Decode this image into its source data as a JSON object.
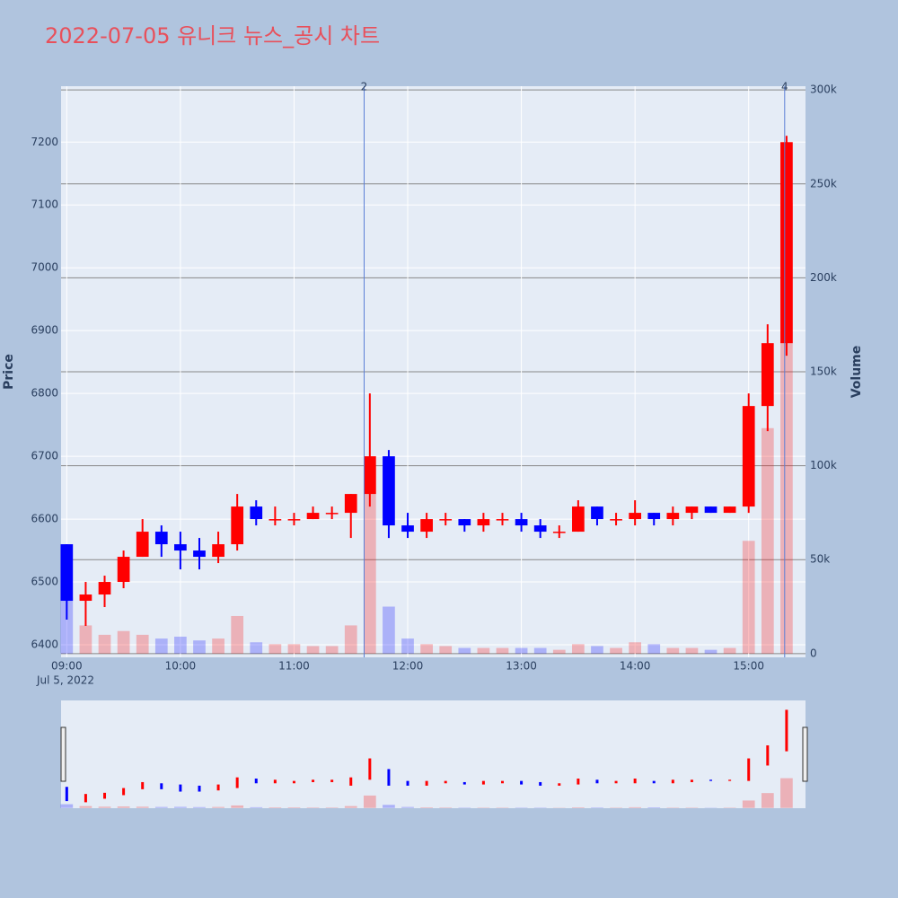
{
  "chart_data": {
    "type": "candlestick",
    "title": "2022-07-05 유니크 뉴스_공시 차트",
    "y_label": "Price",
    "y2_label": "Volume",
    "date_label": "Jul 5, 2022",
    "increasing_color": "#ff0000",
    "decreasing_color": "#0000ff",
    "x": [
      "09:00",
      "09:10",
      "09:20",
      "09:30",
      "09:40",
      "09:50",
      "10:00",
      "10:10",
      "10:20",
      "10:30",
      "10:40",
      "10:50",
      "11:00",
      "11:10",
      "11:20",
      "11:30",
      "11:40",
      "11:50",
      "12:00",
      "12:10",
      "12:20",
      "12:30",
      "12:40",
      "12:50",
      "13:00",
      "13:10",
      "13:20",
      "13:30",
      "13:40",
      "13:50",
      "14:00",
      "14:10",
      "14:20",
      "14:30",
      "14:40",
      "14:50",
      "15:00",
      "15:10",
      "15:20"
    ],
    "open": [
      6560,
      6470,
      6480,
      6500,
      6540,
      6580,
      6560,
      6550,
      6540,
      6560,
      6620,
      6600,
      6600,
      6600,
      6610,
      6610,
      6640,
      6700,
      6590,
      6580,
      6600,
      6600,
      6590,
      6600,
      6600,
      6590,
      6580,
      6580,
      6620,
      6600,
      6600,
      6610,
      6600,
      6610,
      6620,
      6610,
      6620,
      6780,
      6880
    ],
    "high": [
      6560,
      6500,
      6510,
      6550,
      6600,
      6590,
      6580,
      6570,
      6580,
      6640,
      6630,
      6620,
      6610,
      6620,
      6620,
      6640,
      6800,
      6710,
      6610,
      6610,
      6610,
      6600,
      6610,
      6610,
      6610,
      6600,
      6590,
      6630,
      6620,
      6610,
      6630,
      6610,
      6620,
      6620,
      6620,
      6620,
      6800,
      6910,
      7210
    ],
    "low": [
      6440,
      6430,
      6460,
      6490,
      6540,
      6540,
      6520,
      6520,
      6530,
      6550,
      6590,
      6590,
      6590,
      6600,
      6600,
      6570,
      6620,
      6570,
      6570,
      6570,
      6590,
      6580,
      6580,
      6590,
      6580,
      6570,
      6570,
      6580,
      6590,
      6590,
      6590,
      6590,
      6590,
      6600,
      6610,
      6610,
      6610,
      6740,
      6860
    ],
    "close": [
      6470,
      6480,
      6500,
      6540,
      6580,
      6560,
      6550,
      6540,
      6560,
      6620,
      6600,
      6600,
      6600,
      6610,
      6610,
      6640,
      6700,
      6590,
      6580,
      6600,
      6600,
      6590,
      6600,
      6600,
      6590,
      6580,
      6580,
      6620,
      6600,
      6600,
      6610,
      6600,
      6610,
      6620,
      6610,
      6620,
      6780,
      6880,
      7200
    ],
    "volume": [
      30000,
      15000,
      10000,
      12000,
      10000,
      8000,
      9000,
      7000,
      8000,
      20000,
      6000,
      5000,
      5000,
      4000,
      4000,
      15000,
      100000,
      25000,
      8000,
      5000,
      4000,
      3000,
      3000,
      3000,
      3000,
      3000,
      2000,
      5000,
      4000,
      3000,
      6000,
      5000,
      3000,
      3000,
      2000,
      3000,
      60000,
      120000,
      240000
    ],
    "annotations": [
      {
        "x": "11:37",
        "text": "2"
      },
      {
        "x": "15:19",
        "text": "4"
      }
    ],
    "xlim": [
      "08:57",
      "15:30"
    ],
    "xticks": [
      "09:00",
      "10:00",
      "11:00",
      "12:00",
      "13:00",
      "14:00",
      "15:00"
    ],
    "ylim": [
      6380,
      7289
    ],
    "yticks": [
      6400,
      6500,
      6600,
      6700,
      6800,
      6900,
      7000,
      7100,
      7200
    ],
    "y2lim": [
      -2000,
      302000
    ],
    "y2ticks": [
      0,
      {
        "value": 50000,
        "label": "50k"
      },
      {
        "value": 100000,
        "label": "100k"
      },
      {
        "value": 150000,
        "label": "150k"
      },
      {
        "value": 200000,
        "label": "200k"
      },
      {
        "value": 250000,
        "label": "250k"
      },
      {
        "value": 300000,
        "label": "300k"
      }
    ],
    "grid": true,
    "rangeslider": true
  }
}
